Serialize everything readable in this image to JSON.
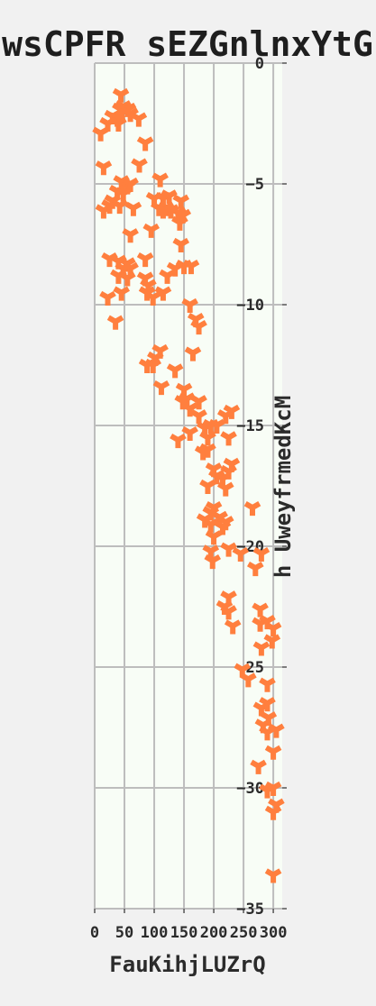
{
  "chart_data": {
    "type": "scatter",
    "title": "wsCPFR sEZGnlnxYtG",
    "xlabel": "FauKihjLUZrQ",
    "ylabel": "h UweyfrmedKcM",
    "xlim": [
      0,
      315
    ],
    "ylim": [
      -35,
      0
    ],
    "xticks": [
      "0",
      "50",
      "100",
      "150",
      "200",
      "250",
      "300"
    ],
    "yticks": [
      "0",
      "−5",
      "−10",
      "−15",
      "−20",
      "−25",
      "−30",
      "−35"
    ],
    "grid": true,
    "marker": "tri-down",
    "colors": {
      "panel": "#f8fdf6",
      "marker": "#ff7f3e",
      "page": "#f1f1f1"
    },
    "series": [
      {
        "points": [
          [
            44,
            -1.3
          ],
          [
            43,
            -1.9
          ],
          [
            48,
            -1.8
          ],
          [
            56,
            -1.9
          ],
          [
            60,
            -2.1
          ],
          [
            30,
            -2.2
          ],
          [
            38,
            -2.3
          ],
          [
            74,
            -2.3
          ],
          [
            22,
            -2.5
          ],
          [
            40,
            -2.5
          ],
          [
            10,
            -2.9
          ],
          [
            85,
            -3.3
          ],
          [
            15,
            -4.3
          ],
          [
            75,
            -4.2
          ],
          [
            110,
            -4.8
          ],
          [
            45,
            -4.9
          ],
          [
            55,
            -5.1
          ],
          [
            60,
            -5.0
          ],
          [
            38,
            -5.3
          ],
          [
            48,
            -5.4
          ],
          [
            100,
            -5.6
          ],
          [
            125,
            -5.5
          ],
          [
            115,
            -5.6
          ],
          [
            145,
            -5.7
          ],
          [
            30,
            -5.7
          ],
          [
            25,
            -5.9
          ],
          [
            42,
            -5.9
          ],
          [
            108,
            -6.0
          ],
          [
            120,
            -6.0
          ],
          [
            128,
            -6.1
          ],
          [
            140,
            -6.2
          ],
          [
            115,
            -6.1
          ],
          [
            65,
            -6.0
          ],
          [
            15,
            -6.1
          ],
          [
            148,
            -6.3
          ],
          [
            143,
            -6.6
          ],
          [
            95,
            -6.9
          ],
          [
            60,
            -7.1
          ],
          [
            145,
            -7.5
          ],
          [
            25,
            -8.1
          ],
          [
            85,
            -8.1
          ],
          [
            40,
            -8.2
          ],
          [
            55,
            -8.3
          ],
          [
            60,
            -8.5
          ],
          [
            48,
            -8.5
          ],
          [
            150,
            -8.4
          ],
          [
            162,
            -8.4
          ],
          [
            135,
            -8.5
          ],
          [
            122,
            -8.8
          ],
          [
            40,
            -8.8
          ],
          [
            85,
            -8.9
          ],
          [
            55,
            -8.9
          ],
          [
            90,
            -9.2
          ],
          [
            88,
            -9.5
          ],
          [
            45,
            -9.5
          ],
          [
            115,
            -9.5
          ],
          [
            98,
            -9.7
          ],
          [
            22,
            -9.7
          ],
          [
            160,
            -10.0
          ],
          [
            170,
            -10.6
          ],
          [
            175,
            -10.9
          ],
          [
            35,
            -10.7
          ],
          [
            110,
            -11.9
          ],
          [
            102,
            -12.2
          ],
          [
            165,
            -12.0
          ],
          [
            88,
            -12.5
          ],
          [
            98,
            -12.5
          ],
          [
            135,
            -12.7
          ],
          [
            112,
            -13.4
          ],
          [
            150,
            -13.5
          ],
          [
            155,
            -13.9
          ],
          [
            148,
            -14.0
          ],
          [
            175,
            -14.0
          ],
          [
            160,
            -14.3
          ],
          [
            175,
            -14.6
          ],
          [
            195,
            -15.0
          ],
          [
            205,
            -15.0
          ],
          [
            185,
            -15.1
          ],
          [
            160,
            -15.3
          ],
          [
            190,
            -15.5
          ],
          [
            140,
            -15.6
          ],
          [
            220,
            -14.6
          ],
          [
            230,
            -14.4
          ],
          [
            225,
            -15.5
          ],
          [
            182,
            -16.1
          ],
          [
            190,
            -16.0
          ],
          [
            230,
            -16.6
          ],
          [
            225,
            -16.9
          ],
          [
            200,
            -16.8
          ],
          [
            205,
            -17.1
          ],
          [
            215,
            -17.2
          ],
          [
            220,
            -17.6
          ],
          [
            190,
            -17.5
          ],
          [
            265,
            -18.4
          ],
          [
            200,
            -18.4
          ],
          [
            195,
            -18.6
          ],
          [
            210,
            -18.8
          ],
          [
            195,
            -19.1
          ],
          [
            185,
            -18.9
          ],
          [
            220,
            -19.0
          ],
          [
            215,
            -19.2
          ],
          [
            200,
            -19.6
          ],
          [
            225,
            -20.1
          ],
          [
            245,
            -20.3
          ],
          [
            280,
            -20.3
          ],
          [
            195,
            -20.2
          ],
          [
            198,
            -20.6
          ],
          [
            270,
            -20.9
          ],
          [
            225,
            -22.1
          ],
          [
            218,
            -22.5
          ],
          [
            225,
            -22.7
          ],
          [
            278,
            -22.6
          ],
          [
            290,
            -23.1
          ],
          [
            278,
            -23.2
          ],
          [
            300,
            -23.4
          ],
          [
            232,
            -23.3
          ],
          [
            298,
            -23.9
          ],
          [
            280,
            -24.2
          ],
          [
            248,
            -25.1
          ],
          [
            258,
            -25.5
          ],
          [
            290,
            -25.7
          ],
          [
            280,
            -26.7
          ],
          [
            290,
            -26.5
          ],
          [
            292,
            -27.1
          ],
          [
            283,
            -27.4
          ],
          [
            290,
            -27.7
          ],
          [
            305,
            -27.6
          ],
          [
            300,
            -28.5
          ],
          [
            275,
            -29.1
          ],
          [
            290,
            -30.1
          ],
          [
            300,
            -30.0
          ],
          [
            305,
            -30.7
          ],
          [
            300,
            -31.0
          ],
          [
            300,
            -33.6
          ]
        ]
      }
    ]
  }
}
